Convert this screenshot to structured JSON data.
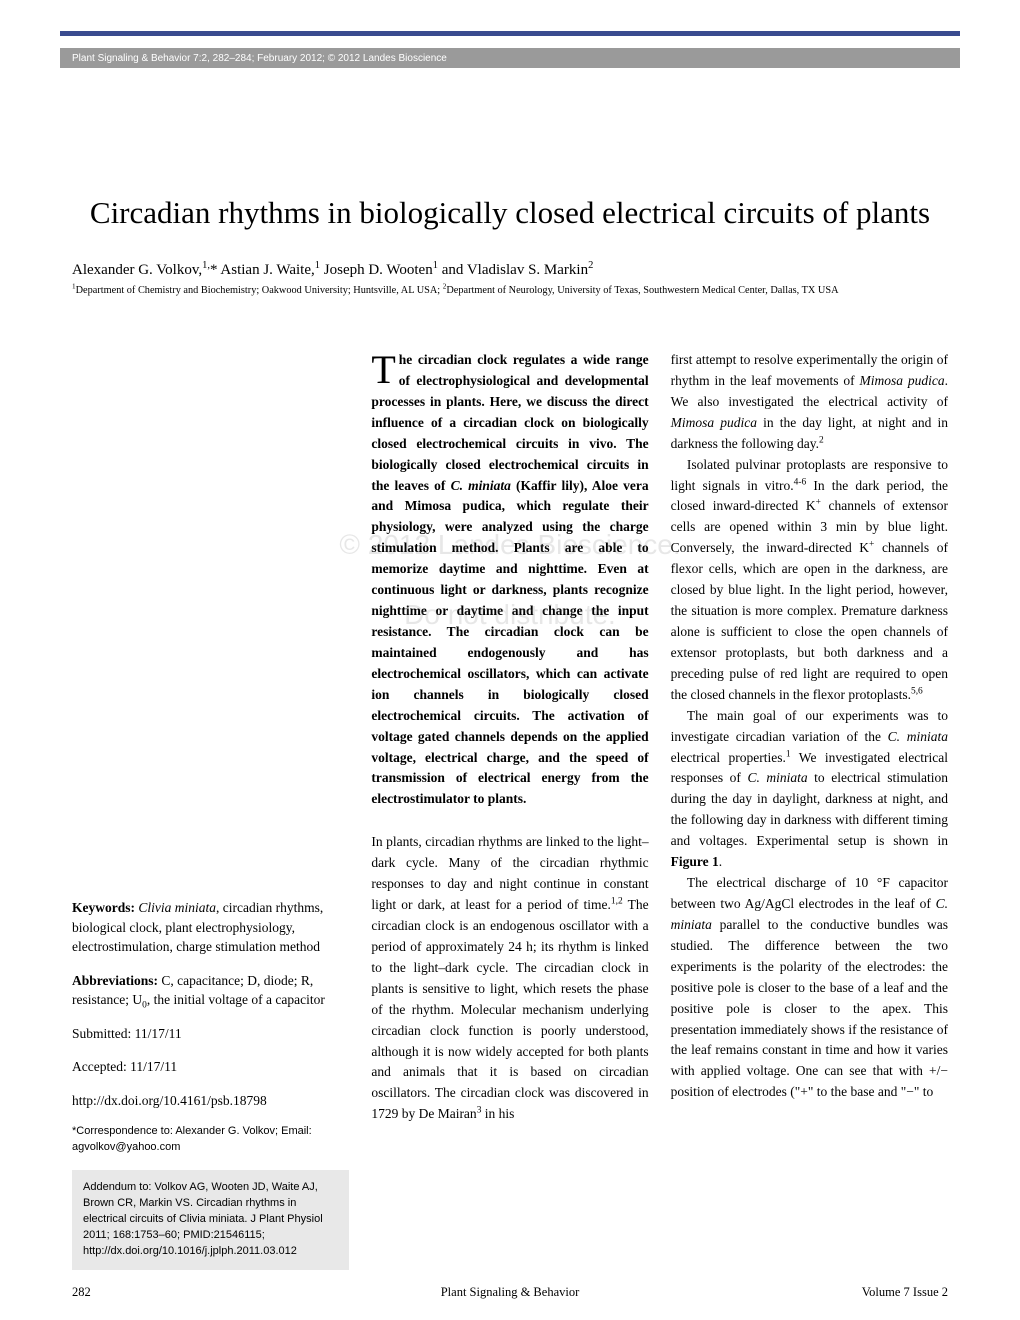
{
  "header": {
    "journal_line": "Plant Signaling & Behavior 7:2, 282–284; February 2012; © 2012 Landes Bioscience"
  },
  "title": "Circadian rhythms in biologically closed electrical circuits of plants",
  "authors_html": "Alexander G. Volkov,<sup>1,</sup>* Astian J. Waite,<sup>1</sup> Joseph D. Wooten<sup>1</sup> and Vladislav S. Markin<sup>2</sup>",
  "affiliations_html": "<sup>1</sup>Department of Chemistry and Biochemistry; Oakwood University; Huntsville, AL USA; <sup>2</sup>Department of Neurology, University of Texas, Southwestern Medical Center, Dallas, TX USA",
  "sidebar": {
    "keywords_label": "Keywords:",
    "keywords_html": " <span class=\"italic\">Clivia miniata</span>, circadian rhythms, biological clock, plant electrophysiology, electrostimulation, charge stimulation method",
    "abbrev_label": "Abbreviations:",
    "abbrev_html": " C, capacitance; D, diode; R, resistance; U<sub>0</sub>, the initial voltage of a capacitor",
    "submitted_label": "Submitted:",
    "submitted": " 11/17/11",
    "accepted_label": "Accepted:",
    "accepted": " 11/17/11",
    "doi": "http://dx.doi.org/10.4161/psb.18798",
    "correspondence": "*Correspondence to: Alexander G. Volkov; Email: agvolkov@yahoo.com",
    "addendum": "Addendum to: Volkov AG, Wooten JD, Waite AJ, Brown CR, Markin VS. Circadian rhythms in electrical circuits of Clivia miniata. J Plant Physiol 2011; 168:1753–60; PMID:21546115; http://dx.doi.org/10.1016/j.jplph.2011.03.012"
  },
  "abstract_html": "The circadian clock regulates a wide range of electrophysiological and developmental processes in plants. Here, we discuss the direct influence of a circadian clock on biologically closed electrochemical circuits in vivo. The biologically closed electrochemical cir­cuits in the leaves of <span class=\"italic\">C. miniata</span> (Kaffir lily), Aloe vera and Mimosa pudica, which regulate their physiology, were analyzed using the charge stimulation method. Plants are able to memorize daytime and nighttime. Even at continu­ous light or darkness, plants recognize nighttime or daytime and change the input resistance. The circadian clock can be maintained endogenously and has electrochemical oscillators, which can activate ion channels in biologically closed electrochemical circuits. The activation of voltage gated channels depends on the applied voltage, electrical charge, and the speed of transmission of electrical energy from the electrostimula­tor to plants.",
  "col2_body_html": "<p>In plants, circadian rhythms are linked to the light–dark cycle. Many of the circadian rhythmic responses to day and night continue in constant light or dark, at least for a period of time.<sup>1,2</sup> The circadian clock is an endogenous oscillator with a period of approximately 24 h; its rhythm is linked to the light–dark cycle. The circadian clock in plants is sensitive to light, which resets the phase of the rhythm. Molecular mechanism underlying circadian clock function is poorly understood, although it is now widely accepted for both plants and animals that it is based on circadian oscillators. The circadian clock was dis­covered in 1729 by De Mairan<sup>3</sup> in his</p>",
  "col3_html": "<p>first attempt to resolve experimentally the origin of rhythm in the leaf movements of <span class=\"italic\">Mimosa pudica</span>. We also investigated the electrical activity of <span class=\"italic\">Mimosa pudica</span> in the day light, at night and in darkness the following day.<sup>2</sup></p><p>Isolated pulvinar protoplasts are res­ponsive to light signals in vitro.<sup>4-6</sup> In the dark period, the closed inward-directed K<sup>+</sup> channels of extensor cells are opened within 3 min by blue light. Conversely, the inward-directed K<sup>+</sup> channels of flexor cells, which are open in the darkness, are closed by blue light. In the light period, however, the situation is more complex. Premature darkness alone is sufficient to close the open channels of extensor pro­toplasts, but both darkness and a preced­ing pulse of red light are required to open the closed channels in the flexor protoplasts.<sup>5,6</sup></p><p>The main goal of our experiments was to investigate circadian variation of the <span class=\"italic\">C. miniata</span> electrical properties.<sup>1</sup> We investigated electrical responses of <span class=\"italic\">C. miniata</span> to electrical stimulation during the day in daylight, darkness at night, and the following day in darkness with differ­ent timing and voltages. Experimental setup is shown in <b>Figure 1</b>.</p><p>The electrical discharge of 10 °F capaci­tor between two Ag/AgCl electrodes in the leaf of <span class=\"italic\">C. miniata</span> parallel to the conductive bundles was studied. The dif­ference between the two experiments is the polarity of the electrodes: the positive pole is closer to the base of a leaf and the positive pole is closer to the apex. This presentation immediately shows if the resistance of the leaf remains constant in time and how it varies with applied voltage. One can see that with +/− position of electrodes (\"+\" to the base and \"−\" to</p>",
  "watermark": {
    "line1": "© 2012 Landes Bioscience.",
    "line2": "Do not distribute."
  },
  "footer": {
    "page": "282",
    "journal": "Plant Signaling & Behavior",
    "issue": "Volume 7 Issue 2"
  },
  "colors": {
    "top_bar": "#3a4b8f",
    "header_band": "#9a9a9a",
    "addendum_bg": "#e8e8e8",
    "text": "#000000",
    "watermark": "rgba(120,120,120,0.18)"
  },
  "typography": {
    "title_fontsize": 31,
    "body_fontsize": 13.5,
    "affiliation_fontsize": 10.3,
    "sidebar_sans_fontsize": 11,
    "footer_fontsize": 12.5,
    "body_font": "Georgia, serif",
    "sans_font": "Arial, Helvetica, sans-serif"
  }
}
